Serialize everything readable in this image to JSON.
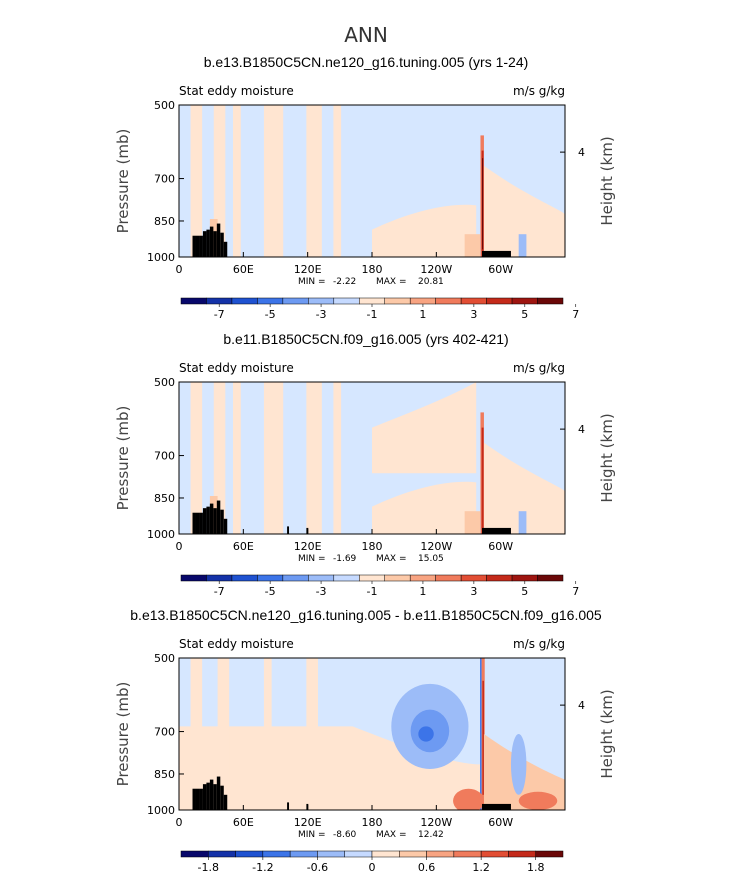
{
  "figure": {
    "main_title": "ANN"
  },
  "colors": {
    "background_fill": "#d6e7ff",
    "topography": "#000000"
  },
  "chart_data": [
    {
      "type": "heatmap",
      "title": "b.e13.B1850C5CN.ne120_g16.tuning.005 (yrs 1-24)",
      "left_label": "Stat eddy moisture",
      "right_label": "m/s g/kg",
      "ylabel": "Pressure (mb)",
      "y2label": "Height (km)",
      "y_ticks": [
        "500",
        "700",
        "850",
        "1000"
      ],
      "y2_ticks": [
        "4"
      ],
      "x_ticks": [
        "0",
        "60E",
        "120E",
        "180",
        "120W",
        "60W"
      ],
      "stats": {
        "min_label": "MIN =",
        "min": "-2.22",
        "max_label": "MAX =",
        "max": "20.81"
      },
      "colorbar": {
        "labels": [
          "-7",
          "-5",
          "-3",
          "-1",
          "1",
          "3",
          "5",
          "7"
        ],
        "colors": [
          "#08086b",
          "#1432a8",
          "#1f52d1",
          "#3c74e8",
          "#6d9af2",
          "#9cbcf8",
          "#c6daff",
          "#ffe5d1",
          "#fcc9a8",
          "#f8a482",
          "#f07b5c",
          "#e24e34",
          "#c42a1a",
          "#9e1510",
          "#6b0808"
        ]
      }
    },
    {
      "type": "heatmap",
      "title": "b.e11.B1850C5CN.f09_g16.005 (yrs 402-421)",
      "left_label": "Stat eddy moisture",
      "right_label": "m/s g/kg",
      "ylabel": "Pressure (mb)",
      "y2label": "Height (km)",
      "y_ticks": [
        "500",
        "700",
        "850",
        "1000"
      ],
      "y2_ticks": [
        "4"
      ],
      "x_ticks": [
        "0",
        "60E",
        "120E",
        "180",
        "120W",
        "60W"
      ],
      "stats": {
        "min_label": "MIN =",
        "min": "-1.69",
        "max_label": "MAX =",
        "max": "15.05"
      },
      "colorbar": {
        "labels": [
          "-7",
          "-5",
          "-3",
          "-1",
          "1",
          "3",
          "5",
          "7"
        ],
        "colors": [
          "#08086b",
          "#1432a8",
          "#1f52d1",
          "#3c74e8",
          "#6d9af2",
          "#9cbcf8",
          "#c6daff",
          "#ffe5d1",
          "#fcc9a8",
          "#f8a482",
          "#f07b5c",
          "#e24e34",
          "#c42a1a",
          "#9e1510",
          "#6b0808"
        ]
      }
    },
    {
      "type": "heatmap",
      "title": "b.e13.B1850C5CN.ne120_g16.tuning.005 - b.e11.B1850C5CN.f09_g16.005",
      "left_label": "Stat eddy moisture",
      "right_label": "m/s g/kg",
      "ylabel": "Pressure (mb)",
      "y2label": "Height (km)",
      "y_ticks": [
        "500",
        "700",
        "850",
        "1000"
      ],
      "y2_ticks": [
        "4"
      ],
      "x_ticks": [
        "0",
        "60E",
        "120E",
        "180",
        "120W",
        "60W"
      ],
      "stats": {
        "min_label": "MIN =",
        "min": "-8.60",
        "max_label": "MAX =",
        "max": "12.42"
      },
      "colorbar": {
        "labels": [
          "-1.8",
          "-1.2",
          "-0.6",
          "0",
          "0.6",
          "1.2",
          "1.8"
        ],
        "colors": [
          "#08086b",
          "#1432a8",
          "#1f52d1",
          "#3c74e8",
          "#6d9af2",
          "#9cbcf8",
          "#c6daff",
          "#ffe5d1",
          "#fcc9a8",
          "#f8a482",
          "#f07b5c",
          "#e24e34",
          "#c42a1a",
          "#6b0808"
        ]
      }
    }
  ]
}
